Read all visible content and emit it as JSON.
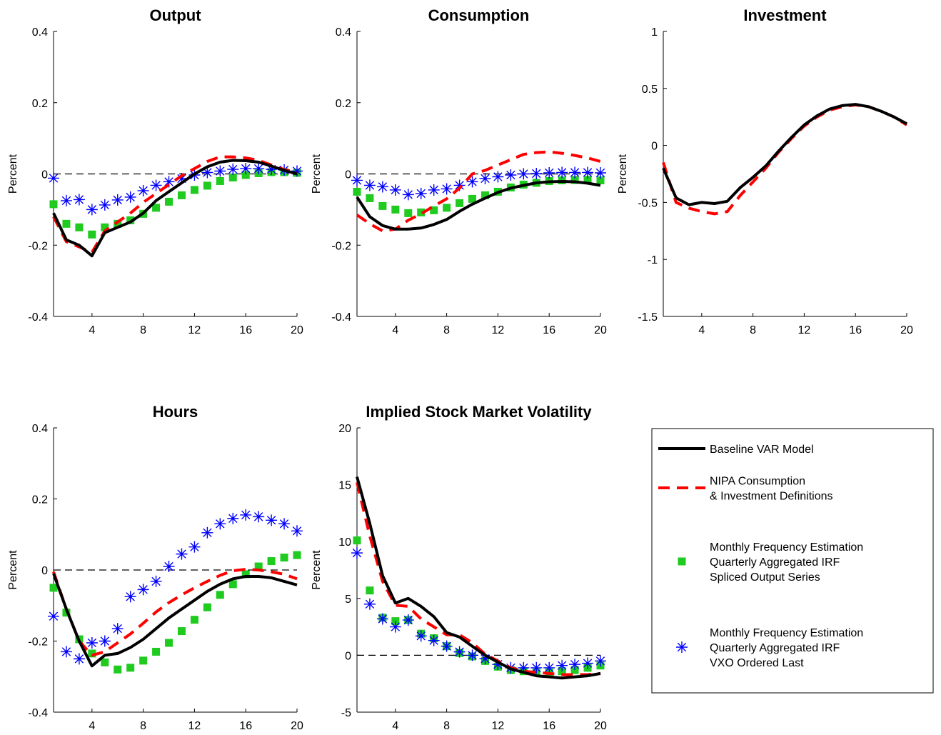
{
  "colors": {
    "baseline": "#000000",
    "nipa": "#ff0000",
    "monthly_spliced": "#1ecb1e",
    "monthly_vxo": "#0000ff"
  },
  "legend": {
    "entries": [
      {
        "key": "baseline",
        "marker": "solid-line",
        "lines": [
          "Baseline VAR Model"
        ]
      },
      {
        "key": "nipa",
        "marker": "dashed-line",
        "lines": [
          "NIPA Consumption",
          "& Investment Definitions"
        ]
      },
      {
        "key": "monthly_spliced",
        "marker": "square",
        "lines": [
          "Monthly Frequency Estimation",
          "Quarterly Aggregated IRF",
          "Spliced Output Series"
        ]
      },
      {
        "key": "monthly_vxo",
        "marker": "asterisk",
        "lines": [
          "Monthly Frequency Estimation",
          "Quarterly Aggregated IRF",
          "VXO Ordered Last"
        ]
      }
    ]
  },
  "chart_data": [
    {
      "type": "line",
      "title": "Output",
      "ylabel": "Percent",
      "xlim": [
        1,
        20
      ],
      "ylim": [
        -0.4,
        0.4
      ],
      "xticks": [
        4,
        8,
        12,
        16,
        20
      ],
      "yticks": [
        -0.4,
        -0.2,
        0,
        0.2,
        0.4
      ],
      "ytick_labels": [
        "-0.4",
        "-0.2",
        "0",
        "0.2",
        "0.4"
      ],
      "zero_line": true,
      "x": [
        1,
        2,
        3,
        4,
        5,
        6,
        7,
        8,
        9,
        10,
        11,
        12,
        13,
        14,
        15,
        16,
        17,
        18,
        19,
        20
      ],
      "series": [
        {
          "key": "baseline",
          "style": "solid",
          "values": [
            -0.11,
            -0.185,
            -0.2,
            -0.23,
            -0.165,
            -0.15,
            -0.135,
            -0.11,
            -0.075,
            -0.05,
            -0.025,
            0.0,
            0.02,
            0.033,
            0.038,
            0.037,
            0.033,
            0.022,
            0.01,
            0.0
          ]
        },
        {
          "key": "nipa",
          "style": "dashed",
          "values": [
            -0.12,
            -0.19,
            -0.205,
            -0.22,
            -0.16,
            -0.135,
            -0.11,
            -0.08,
            -0.055,
            -0.03,
            -0.005,
            0.015,
            0.035,
            0.048,
            0.048,
            0.045,
            0.038,
            0.025,
            0.012,
            0.005
          ]
        },
        {
          "key": "monthly_spliced",
          "style": "square",
          "values": [
            -0.085,
            -0.14,
            -0.15,
            -0.17,
            -0.15,
            -0.14,
            -0.13,
            -0.112,
            -0.095,
            -0.078,
            -0.06,
            -0.045,
            -0.033,
            -0.02,
            -0.01,
            -0.003,
            0.002,
            0.005,
            0.005,
            0.003
          ]
        },
        {
          "key": "monthly_vxo",
          "style": "asterisk",
          "values": [
            -0.012,
            -0.075,
            -0.072,
            -0.1,
            -0.087,
            -0.073,
            -0.065,
            -0.047,
            -0.032,
            -0.022,
            -0.013,
            -0.003,
            0.004,
            0.008,
            0.013,
            0.015,
            0.015,
            0.013,
            0.011,
            0.008
          ]
        }
      ]
    },
    {
      "type": "line",
      "title": "Consumption",
      "ylabel": "Percent",
      "xlim": [
        1,
        20
      ],
      "ylim": [
        -0.4,
        0.4
      ],
      "xticks": [
        4,
        8,
        12,
        16,
        20
      ],
      "yticks": [
        -0.4,
        -0.2,
        0,
        0.2,
        0.4
      ],
      "ytick_labels": [
        "-0.4",
        "-0.2",
        "0",
        "0.2",
        "0.4"
      ],
      "zero_line": true,
      "x": [
        1,
        2,
        3,
        4,
        5,
        6,
        7,
        8,
        9,
        10,
        11,
        12,
        13,
        14,
        15,
        16,
        17,
        18,
        19,
        20
      ],
      "series": [
        {
          "key": "baseline",
          "style": "solid",
          "values": [
            -0.065,
            -0.12,
            -0.145,
            -0.155,
            -0.155,
            -0.152,
            -0.142,
            -0.128,
            -0.105,
            -0.085,
            -0.068,
            -0.052,
            -0.04,
            -0.032,
            -0.025,
            -0.022,
            -0.021,
            -0.022,
            -0.026,
            -0.032
          ]
        },
        {
          "key": "nipa",
          "style": "dashed",
          "values": [
            -0.115,
            -0.14,
            -0.16,
            -0.155,
            -0.13,
            -0.112,
            -0.09,
            -0.07,
            -0.04,
            0.0,
            0.01,
            0.025,
            0.04,
            0.055,
            0.06,
            0.062,
            0.058,
            0.052,
            0.045,
            0.035
          ]
        },
        {
          "key": "monthly_spliced",
          "style": "square",
          "values": [
            -0.05,
            -0.068,
            -0.09,
            -0.1,
            -0.11,
            -0.108,
            -0.102,
            -0.095,
            -0.082,
            -0.07,
            -0.06,
            -0.05,
            -0.038,
            -0.03,
            -0.025,
            -0.02,
            -0.018,
            -0.017,
            -0.017,
            -0.018
          ]
        },
        {
          "key": "monthly_vxo",
          "style": "asterisk",
          "values": [
            -0.018,
            -0.032,
            -0.036,
            -0.045,
            -0.058,
            -0.055,
            -0.045,
            -0.042,
            -0.032,
            -0.022,
            -0.013,
            -0.008,
            -0.003,
            0.0,
            0.001,
            0.003,
            0.004,
            0.004,
            0.004,
            0.003
          ]
        }
      ]
    },
    {
      "type": "line",
      "title": "Investment",
      "ylabel": "Percent",
      "xlim": [
        1,
        20
      ],
      "ylim": [
        -1.5,
        1
      ],
      "xticks": [
        4,
        8,
        12,
        16,
        20
      ],
      "yticks": [
        -1.5,
        -1,
        -0.5,
        0,
        0.5,
        1
      ],
      "ytick_labels": [
        "-1.5",
        "-1",
        "-0.5",
        "0",
        "0.5",
        "1"
      ],
      "zero_line": false,
      "x": [
        1,
        2,
        3,
        4,
        5,
        6,
        7,
        8,
        9,
        10,
        11,
        12,
        13,
        14,
        15,
        16,
        17,
        18,
        19,
        20
      ],
      "series": [
        {
          "key": "baseline",
          "style": "solid",
          "values": [
            -0.2,
            -0.46,
            -0.52,
            -0.5,
            -0.51,
            -0.49,
            -0.37,
            -0.28,
            -0.18,
            -0.05,
            0.07,
            0.18,
            0.26,
            0.32,
            0.35,
            0.36,
            0.34,
            0.3,
            0.25,
            0.19
          ]
        },
        {
          "key": "nipa",
          "style": "dashed",
          "values": [
            -0.15,
            -0.5,
            -0.55,
            -0.58,
            -0.6,
            -0.58,
            -0.44,
            -0.32,
            -0.2,
            -0.06,
            0.06,
            0.17,
            0.25,
            0.31,
            0.34,
            0.355,
            0.34,
            0.3,
            0.25,
            0.18
          ]
        }
      ]
    },
    {
      "type": "line",
      "title": "Hours",
      "ylabel": "Percent",
      "xlim": [
        1,
        20
      ],
      "ylim": [
        -0.4,
        0.4
      ],
      "xticks": [
        4,
        8,
        12,
        16,
        20
      ],
      "yticks": [
        -0.4,
        -0.2,
        0,
        0.2,
        0.4
      ],
      "ytick_labels": [
        "-0.4",
        "-0.2",
        "0",
        "0.2",
        "0.4"
      ],
      "zero_line": true,
      "x": [
        1,
        2,
        3,
        4,
        5,
        6,
        7,
        8,
        9,
        10,
        11,
        12,
        13,
        14,
        15,
        16,
        17,
        18,
        19,
        20
      ],
      "series": [
        {
          "key": "baseline",
          "style": "solid",
          "values": [
            -0.01,
            -0.11,
            -0.2,
            -0.27,
            -0.24,
            -0.235,
            -0.218,
            -0.195,
            -0.165,
            -0.135,
            -0.11,
            -0.085,
            -0.06,
            -0.04,
            -0.025,
            -0.018,
            -0.018,
            -0.022,
            -0.032,
            -0.042
          ]
        },
        {
          "key": "nipa",
          "style": "dashed",
          "values": [
            -0.005,
            -0.11,
            -0.2,
            -0.24,
            -0.23,
            -0.205,
            -0.18,
            -0.15,
            -0.118,
            -0.092,
            -0.07,
            -0.05,
            -0.032,
            -0.015,
            -0.002,
            0.002,
            0.0,
            -0.005,
            -0.012,
            -0.025
          ]
        },
        {
          "key": "monthly_spliced",
          "style": "square",
          "values": [
            -0.05,
            -0.12,
            -0.195,
            -0.235,
            -0.26,
            -0.28,
            -0.275,
            -0.255,
            -0.23,
            -0.205,
            -0.172,
            -0.14,
            -0.105,
            -0.07,
            -0.04,
            -0.012,
            0.01,
            0.025,
            0.035,
            0.042
          ]
        },
        {
          "key": "monthly_vxo",
          "style": "asterisk",
          "values": [
            -0.13,
            -0.23,
            -0.25,
            -0.205,
            -0.2,
            -0.165,
            -0.075,
            -0.055,
            -0.032,
            0.01,
            0.045,
            0.065,
            0.105,
            0.13,
            0.145,
            0.155,
            0.15,
            0.14,
            0.13,
            0.11
          ]
        }
      ]
    },
    {
      "type": "line",
      "title": "Implied Stock Market Volatility",
      "ylabel": "Percent",
      "xlim": [
        1,
        20
      ],
      "ylim": [
        -5,
        20
      ],
      "xticks": [
        4,
        8,
        12,
        16,
        20
      ],
      "yticks": [
        -5,
        0,
        5,
        10,
        15,
        20
      ],
      "ytick_labels": [
        "-5",
        "0",
        "5",
        "10",
        "15",
        "20"
      ],
      "zero_line": true,
      "x": [
        1,
        2,
        3,
        4,
        5,
        6,
        7,
        8,
        9,
        10,
        11,
        12,
        13,
        14,
        15,
        16,
        17,
        18,
        19,
        20
      ],
      "series": [
        {
          "key": "baseline",
          "style": "solid",
          "values": [
            15.7,
            11.6,
            7.0,
            4.6,
            5.0,
            4.3,
            3.4,
            2.0,
            1.6,
            0.8,
            0.0,
            -0.6,
            -1.2,
            -1.5,
            -1.8,
            -1.9,
            -2.0,
            -1.9,
            -1.8,
            -1.6
          ]
        },
        {
          "key": "nipa",
          "style": "dashed",
          "values": [
            15.2,
            10.5,
            6.5,
            4.4,
            4.3,
            3.2,
            2.5,
            1.8,
            1.8,
            1.1,
            0.1,
            -0.5,
            -1.1,
            -1.4,
            -1.5,
            -1.6,
            -1.7,
            -1.7,
            -1.7,
            -1.6
          ]
        },
        {
          "key": "monthly_spliced",
          "style": "square",
          "values": [
            10.1,
            5.7,
            3.3,
            3.0,
            3.1,
            1.9,
            1.5,
            0.8,
            0.2,
            -0.1,
            -0.5,
            -1.0,
            -1.3,
            -1.4,
            -1.5,
            -1.5,
            -1.4,
            -1.3,
            -1.1,
            -0.9
          ]
        },
        {
          "key": "monthly_vxo",
          "style": "asterisk",
          "values": [
            9.0,
            4.5,
            3.2,
            2.5,
            3.1,
            1.7,
            1.3,
            0.8,
            0.3,
            0.0,
            -0.3,
            -0.8,
            -1.1,
            -1.1,
            -1.1,
            -1.1,
            -0.9,
            -0.8,
            -0.7,
            -0.5
          ]
        }
      ]
    }
  ]
}
